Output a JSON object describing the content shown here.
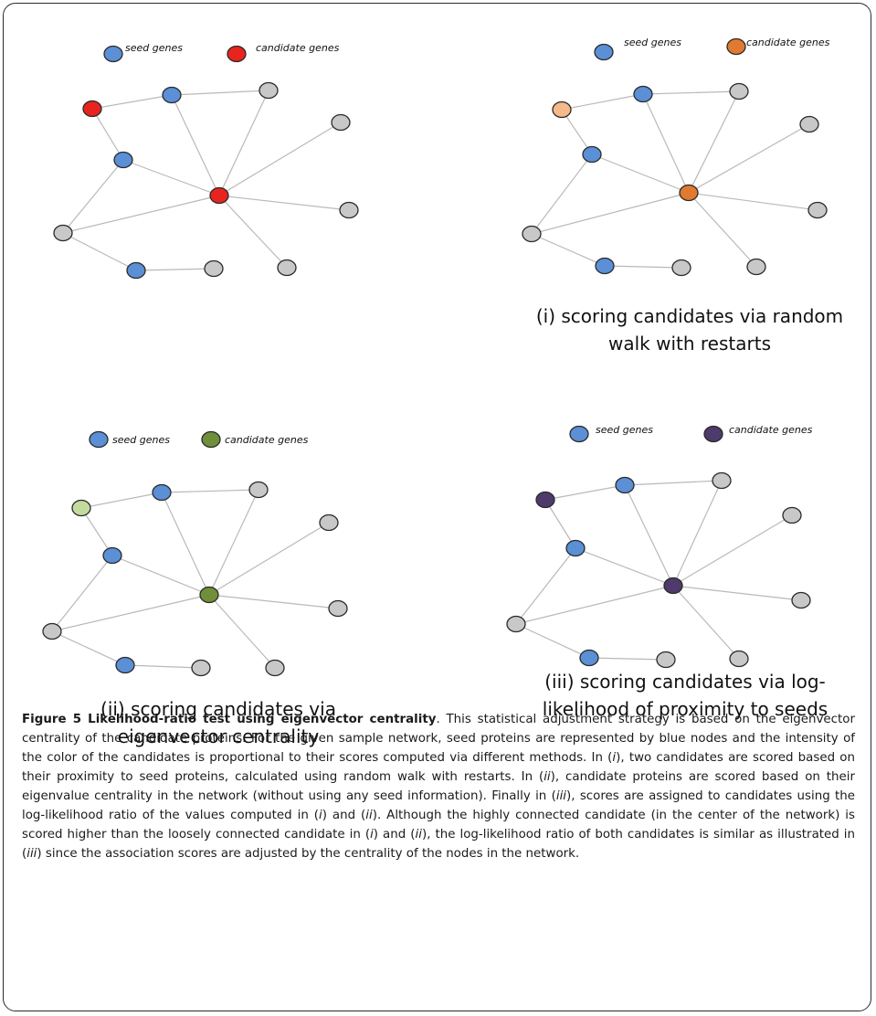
{
  "legend": {
    "seed_label": "seed genes",
    "candidate_label": "candidate genes"
  },
  "panels": [
    {
      "id": "top-left",
      "title": "",
      "candidate_color": "#e8241f",
      "candidate_color_secondary": "#e8241f"
    },
    {
      "id": "i",
      "title_line1": "(i) scoring candidates via random",
      "title_line2": "walk with restarts",
      "candidate_color": "#e07a30",
      "candidate_color_secondary": "#f5b98a"
    },
    {
      "id": "ii",
      "title_line1": "(ii) scoring candidates via",
      "title_line2": "eigenvector centrality",
      "candidate_color": "#6f8f3a",
      "candidate_color_secondary": "#c4dba0"
    },
    {
      "id": "iii",
      "title_line1": "(iii) scoring candidates via log-",
      "title_line2": "likelihood of proximity to seeds",
      "candidate_color": "#4e3a6b",
      "candidate_color_secondary": "#4e3a6b"
    }
  ],
  "colors": {
    "seed": "#5b8fd6",
    "other": "#c8c8c8",
    "edge": "#b9b9b9",
    "outline": "#2a2a2a"
  },
  "caption": {
    "label": "Figure 5 Likelihood-ratio test using eigenvector centrality",
    "text_1": ". This statistical adjustment strategy is based on the eigenvector centrality of the candidate proteins. For the given sample network, seed proteins are represented by blue nodes and the intensity of the color of the candidates is proportional to their scores computed via different methods. In (",
    "i1": "i",
    "text_2": "), two candidates are scored based on their proximity to seed proteins, calculated using random walk with restarts. In (",
    "ii1": "ii",
    "text_3": "), candidate proteins are scored based on their eigenvalue centrality in the network (without using any seed information). Finally in (",
    "iii1": "iii",
    "text_4": "), scores are assigned to candidates using the log-likelihood ratio of the values computed in (",
    "i2": "i",
    "text_5": ") and (",
    "ii2": "ii",
    "text_6": "). Although the highly connected candidate (in the center of the network) is scored higher than the loosely connected candidate in (",
    "i3": "i",
    "text_7": ") and (",
    "ii3": "ii",
    "text_8": "), the log-likelihood ratio of both candidates is similar as illustrated in (",
    "iii2": "iii",
    "text_9": ") since the association scores are adjusted by the centrality of the nodes in the network."
  }
}
